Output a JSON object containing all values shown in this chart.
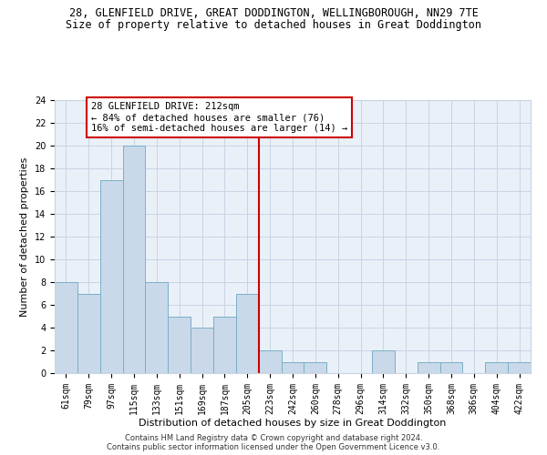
{
  "title_line1": "28, GLENFIELD DRIVE, GREAT DODDINGTON, WELLINGBOROUGH, NN29 7TE",
  "title_line2": "Size of property relative to detached houses in Great Doddington",
  "xlabel": "Distribution of detached houses by size in Great Doddington",
  "ylabel": "Number of detached properties",
  "footnote1": "Contains HM Land Registry data © Crown copyright and database right 2024.",
  "footnote2": "Contains public sector information licensed under the Open Government Licence v3.0.",
  "bar_labels": [
    "61sqm",
    "79sqm",
    "97sqm",
    "115sqm",
    "133sqm",
    "151sqm",
    "169sqm",
    "187sqm",
    "205sqm",
    "223sqm",
    "242sqm",
    "260sqm",
    "278sqm",
    "296sqm",
    "314sqm",
    "332sqm",
    "350sqm",
    "368sqm",
    "386sqm",
    "404sqm",
    "422sqm"
  ],
  "bar_values": [
    8,
    7,
    17,
    20,
    8,
    5,
    4,
    5,
    7,
    2,
    1,
    1,
    0,
    0,
    2,
    0,
    1,
    1,
    0,
    1,
    1
  ],
  "bar_color": "#c9d9ea",
  "bar_edgecolor": "#7aafc8",
  "vline_x": 8.5,
  "vline_color": "#cc0000",
  "annotation_text": "28 GLENFIELD DRIVE: 212sqm\n← 84% of detached houses are smaller (76)\n16% of semi-detached houses are larger (14) →",
  "annotation_box_color": "#cc0000",
  "ylim": [
    0,
    24
  ],
  "yticks": [
    0,
    2,
    4,
    6,
    8,
    10,
    12,
    14,
    16,
    18,
    20,
    22,
    24
  ],
  "grid_color": "#c8d4e4",
  "bg_color": "#eaf0f8",
  "title_fontsize": 8.5,
  "subtitle_fontsize": 8.5,
  "axis_label_fontsize": 8.0,
  "tick_fontsize": 7.0,
  "annot_fontsize": 7.5,
  "footnote_fontsize": 6.0
}
